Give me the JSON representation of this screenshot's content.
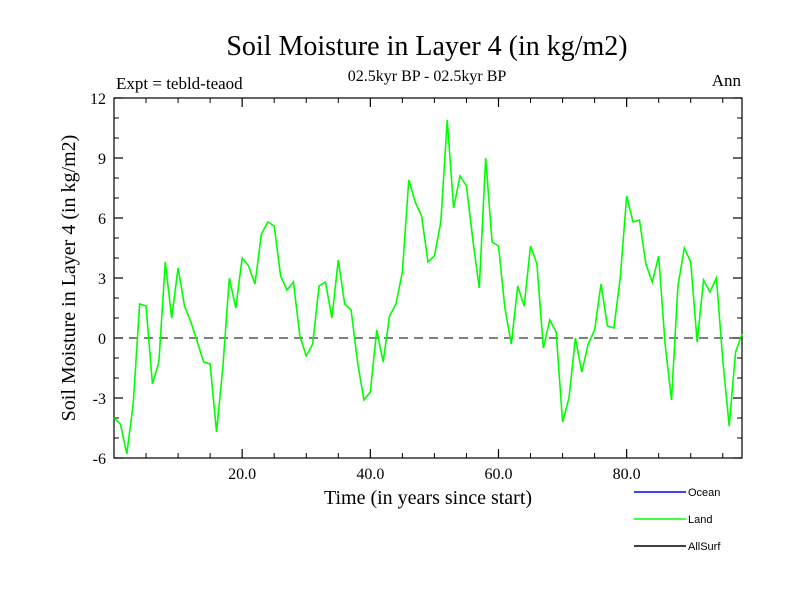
{
  "chart_data": {
    "type": "line",
    "title": "Soil Moisture in Layer 4 (in kg/m2)",
    "subtitle": "02.5kyr BP - 02.5kyr BP",
    "left_annotation": "Expt = tebld-teaod",
    "right_annotation": "Ann",
    "xlabel": "Time (in years since start)",
    "ylabel": "Soil Moisture in Layer 4 (in kg/m2)",
    "xlim": [
      0,
      98
    ],
    "ylim": [
      -6,
      12
    ],
    "xticks": [
      20,
      40,
      60,
      80
    ],
    "xtick_labels": [
      "20.0",
      "40.0",
      "60.0",
      "80.0"
    ],
    "yticks": [
      -6,
      -3,
      0,
      3,
      6,
      9,
      12
    ],
    "ytick_labels": [
      "-6",
      "-3",
      "0",
      "3",
      "6",
      "9",
      "12"
    ],
    "reference_line": 0,
    "legend": [
      {
        "name": "Ocean",
        "color": "#0000ff"
      },
      {
        "name": "Land",
        "color": "#00ff00"
      },
      {
        "name": "AllSurf",
        "color": "#000000"
      }
    ],
    "series": [
      {
        "name": "Land",
        "color": "#00ff00",
        "x": [
          0,
          1,
          2,
          3,
          4,
          5,
          6,
          7,
          8,
          9,
          10,
          11,
          12,
          13,
          14,
          15,
          16,
          17,
          18,
          19,
          20,
          21,
          22,
          23,
          24,
          25,
          26,
          27,
          28,
          29,
          30,
          31,
          32,
          33,
          34,
          35,
          36,
          37,
          38,
          39,
          40,
          41,
          42,
          43,
          44,
          45,
          46,
          47,
          48,
          49,
          50,
          51,
          52,
          53,
          54,
          55,
          56,
          57,
          58,
          59,
          60,
          61,
          62,
          63,
          64,
          65,
          66,
          67,
          68,
          69,
          70,
          71,
          72,
          73,
          74,
          75,
          76,
          77,
          78,
          79,
          80,
          81,
          82,
          83,
          84,
          85,
          86,
          87,
          88,
          89,
          90,
          91,
          92,
          93,
          94,
          95,
          96,
          97,
          98
        ],
        "values": [
          -4.0,
          -4.3,
          -5.8,
          -3.3,
          1.7,
          1.6,
          -2.3,
          -1.2,
          3.8,
          1.0,
          3.5,
          1.6,
          0.8,
          -0.2,
          -1.2,
          -1.3,
          -4.7,
          -1.4,
          3.0,
          1.5,
          4.0,
          3.6,
          2.7,
          5.2,
          5.8,
          5.6,
          3.1,
          2.4,
          2.8,
          0.1,
          -0.9,
          -0.3,
          2.6,
          2.8,
          1.0,
          3.9,
          1.7,
          1.4,
          -1.2,
          -3.1,
          -2.7,
          0.4,
          -1.2,
          1.1,
          1.7,
          3.3,
          7.9,
          6.8,
          6.1,
          3.8,
          4.1,
          5.8,
          10.9,
          6.5,
          8.1,
          7.6,
          4.9,
          2.5,
          9.0,
          4.8,
          4.6,
          1.5,
          -0.3,
          2.6,
          1.6,
          4.6,
          3.7,
          -0.5,
          0.9,
          0.3,
          -4.2,
          -3.0,
          0.0,
          -1.7,
          -0.3,
          0.4,
          2.7,
          0.6,
          0.5,
          3.0,
          7.1,
          5.8,
          5.9,
          3.7,
          2.8,
          4.1,
          -0.3,
          -3.1,
          2.6,
          4.5,
          3.8,
          -0.2,
          2.9,
          2.3,
          3.0,
          -1.1,
          -4.4,
          -0.7,
          0.2
        ]
      }
    ]
  }
}
